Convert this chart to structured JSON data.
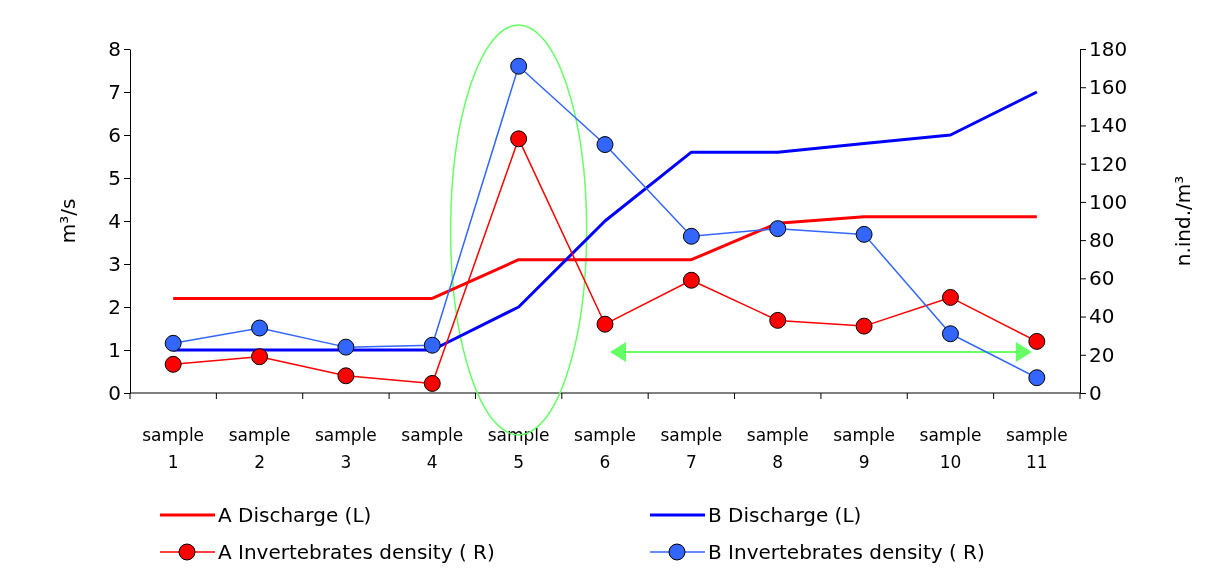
{
  "chart_data": {
    "type": "line",
    "categories": [
      "sample 1",
      "sample 2",
      "sample 3",
      "sample 4",
      "sample 5",
      "sample 6",
      "sample 7",
      "sample 8",
      "sample 9",
      "sample 10",
      "sample 11"
    ],
    "ylabel": "m³/s",
    "y2label": "n.ind./m³",
    "ylim": [
      0,
      8
    ],
    "yticks": [
      0,
      1,
      2,
      3,
      4,
      5,
      6,
      7,
      8
    ],
    "y2lim": [
      0,
      180
    ],
    "y2ticks": [
      0,
      20,
      40,
      60,
      80,
      100,
      120,
      140,
      160,
      180
    ],
    "legend": "bottom",
    "series": [
      {
        "name": "A Discharge (L)",
        "color": "#ff0000",
        "marker": "none",
        "values": [
          2.2,
          2.2,
          2.2,
          2.2,
          3.1,
          3.1,
          3.1,
          3.95,
          4.1,
          4.1,
          4.1
        ]
      },
      {
        "name": "B Discharge (L)",
        "color": "#0000ff",
        "marker": "none",
        "values": [
          1.0,
          1.0,
          1.0,
          1.0,
          2.0,
          4.0,
          5.6,
          5.6,
          5.8,
          6.0,
          7.0
        ]
      },
      {
        "name": "A Invertebrates density ( R)",
        "color": "#ff0000",
        "marker": "circle",
        "axis": "y2",
        "values": [
          15,
          19,
          9,
          5,
          133,
          36,
          59,
          38,
          35,
          50,
          27
        ]
      },
      {
        "name": "B Invertebrates density ( R)",
        "color": "#3366ff",
        "marker": "circle",
        "axis": "y2",
        "values": [
          26,
          34,
          24,
          25,
          171,
          130,
          82,
          86,
          83,
          31,
          8
        ]
      }
    ]
  }
}
